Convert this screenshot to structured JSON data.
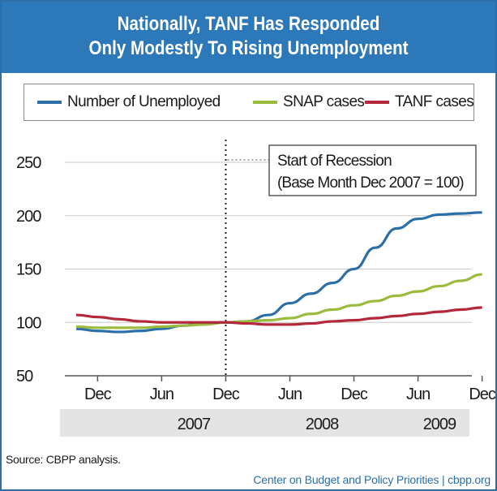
{
  "header": {
    "title_line1": "Nationally, TANF Has Responded",
    "title_line2": "Only Modestly To Rising Unemployment"
  },
  "annotation": {
    "line1": "Start of Recession",
    "line2": "(Base Month Dec 2007 = 100)"
  },
  "source": "Source: CBPP analysis.",
  "footer": "Center on Budget and Policy Priorities | cbpp.org",
  "colors": {
    "unemployed": "#2b6fa8",
    "snap": "#9bbb3c",
    "tanf": "#b4283c",
    "grid": "#c8c8c8"
  },
  "chart_data": {
    "type": "line",
    "title": "Nationally, TANF Has Responded Only Modestly To Rising Unemployment",
    "xlabel": "",
    "ylabel": "",
    "ylim": [
      50,
      250
    ],
    "yticks": [
      50,
      100,
      150,
      200,
      250
    ],
    "y_tick_labels": [
      "50",
      "100",
      "150",
      "200",
      "250"
    ],
    "x_tick_labels": [
      "Dec",
      "Jun",
      "Dec",
      "Jun",
      "Dec",
      "Jun",
      "Dec"
    ],
    "year_labels": [
      "2007",
      "2008",
      "2009"
    ],
    "grid": true,
    "legend_position": "top",
    "recession_start": "Dec 2007",
    "x": [
      "Oct 2006",
      "Dec 2006",
      "Feb 2007",
      "Apr 2007",
      "Jun 2007",
      "Aug 2007",
      "Oct 2007",
      "Dec 2007",
      "Feb 2008",
      "Apr 2008",
      "Jun 2008",
      "Aug 2008",
      "Oct 2008",
      "Dec 2008",
      "Feb 2009",
      "Apr 2009",
      "Jun 2009",
      "Aug 2009",
      "Oct 2009",
      "Dec 2009"
    ],
    "series": [
      {
        "name": "Number of Unemployed",
        "values": [
          94,
          92,
          91,
          92,
          94,
          97,
          99,
          100,
          101,
          107,
          118,
          127,
          137,
          150,
          170,
          188,
          197,
          201,
          202,
          203
        ]
      },
      {
        "name": "SNAP cases",
        "values": [
          96,
          95,
          95,
          95,
          96,
          97,
          98,
          100,
          101,
          102,
          104,
          108,
          112,
          116,
          120,
          125,
          129,
          134,
          139,
          145
        ]
      },
      {
        "name": "TANF cases",
        "values": [
          107,
          105,
          103,
          101,
          100,
          100,
          100,
          100,
          99,
          98,
          98,
          99,
          101,
          102,
          104,
          106,
          108,
          110,
          112,
          114
        ]
      }
    ]
  }
}
